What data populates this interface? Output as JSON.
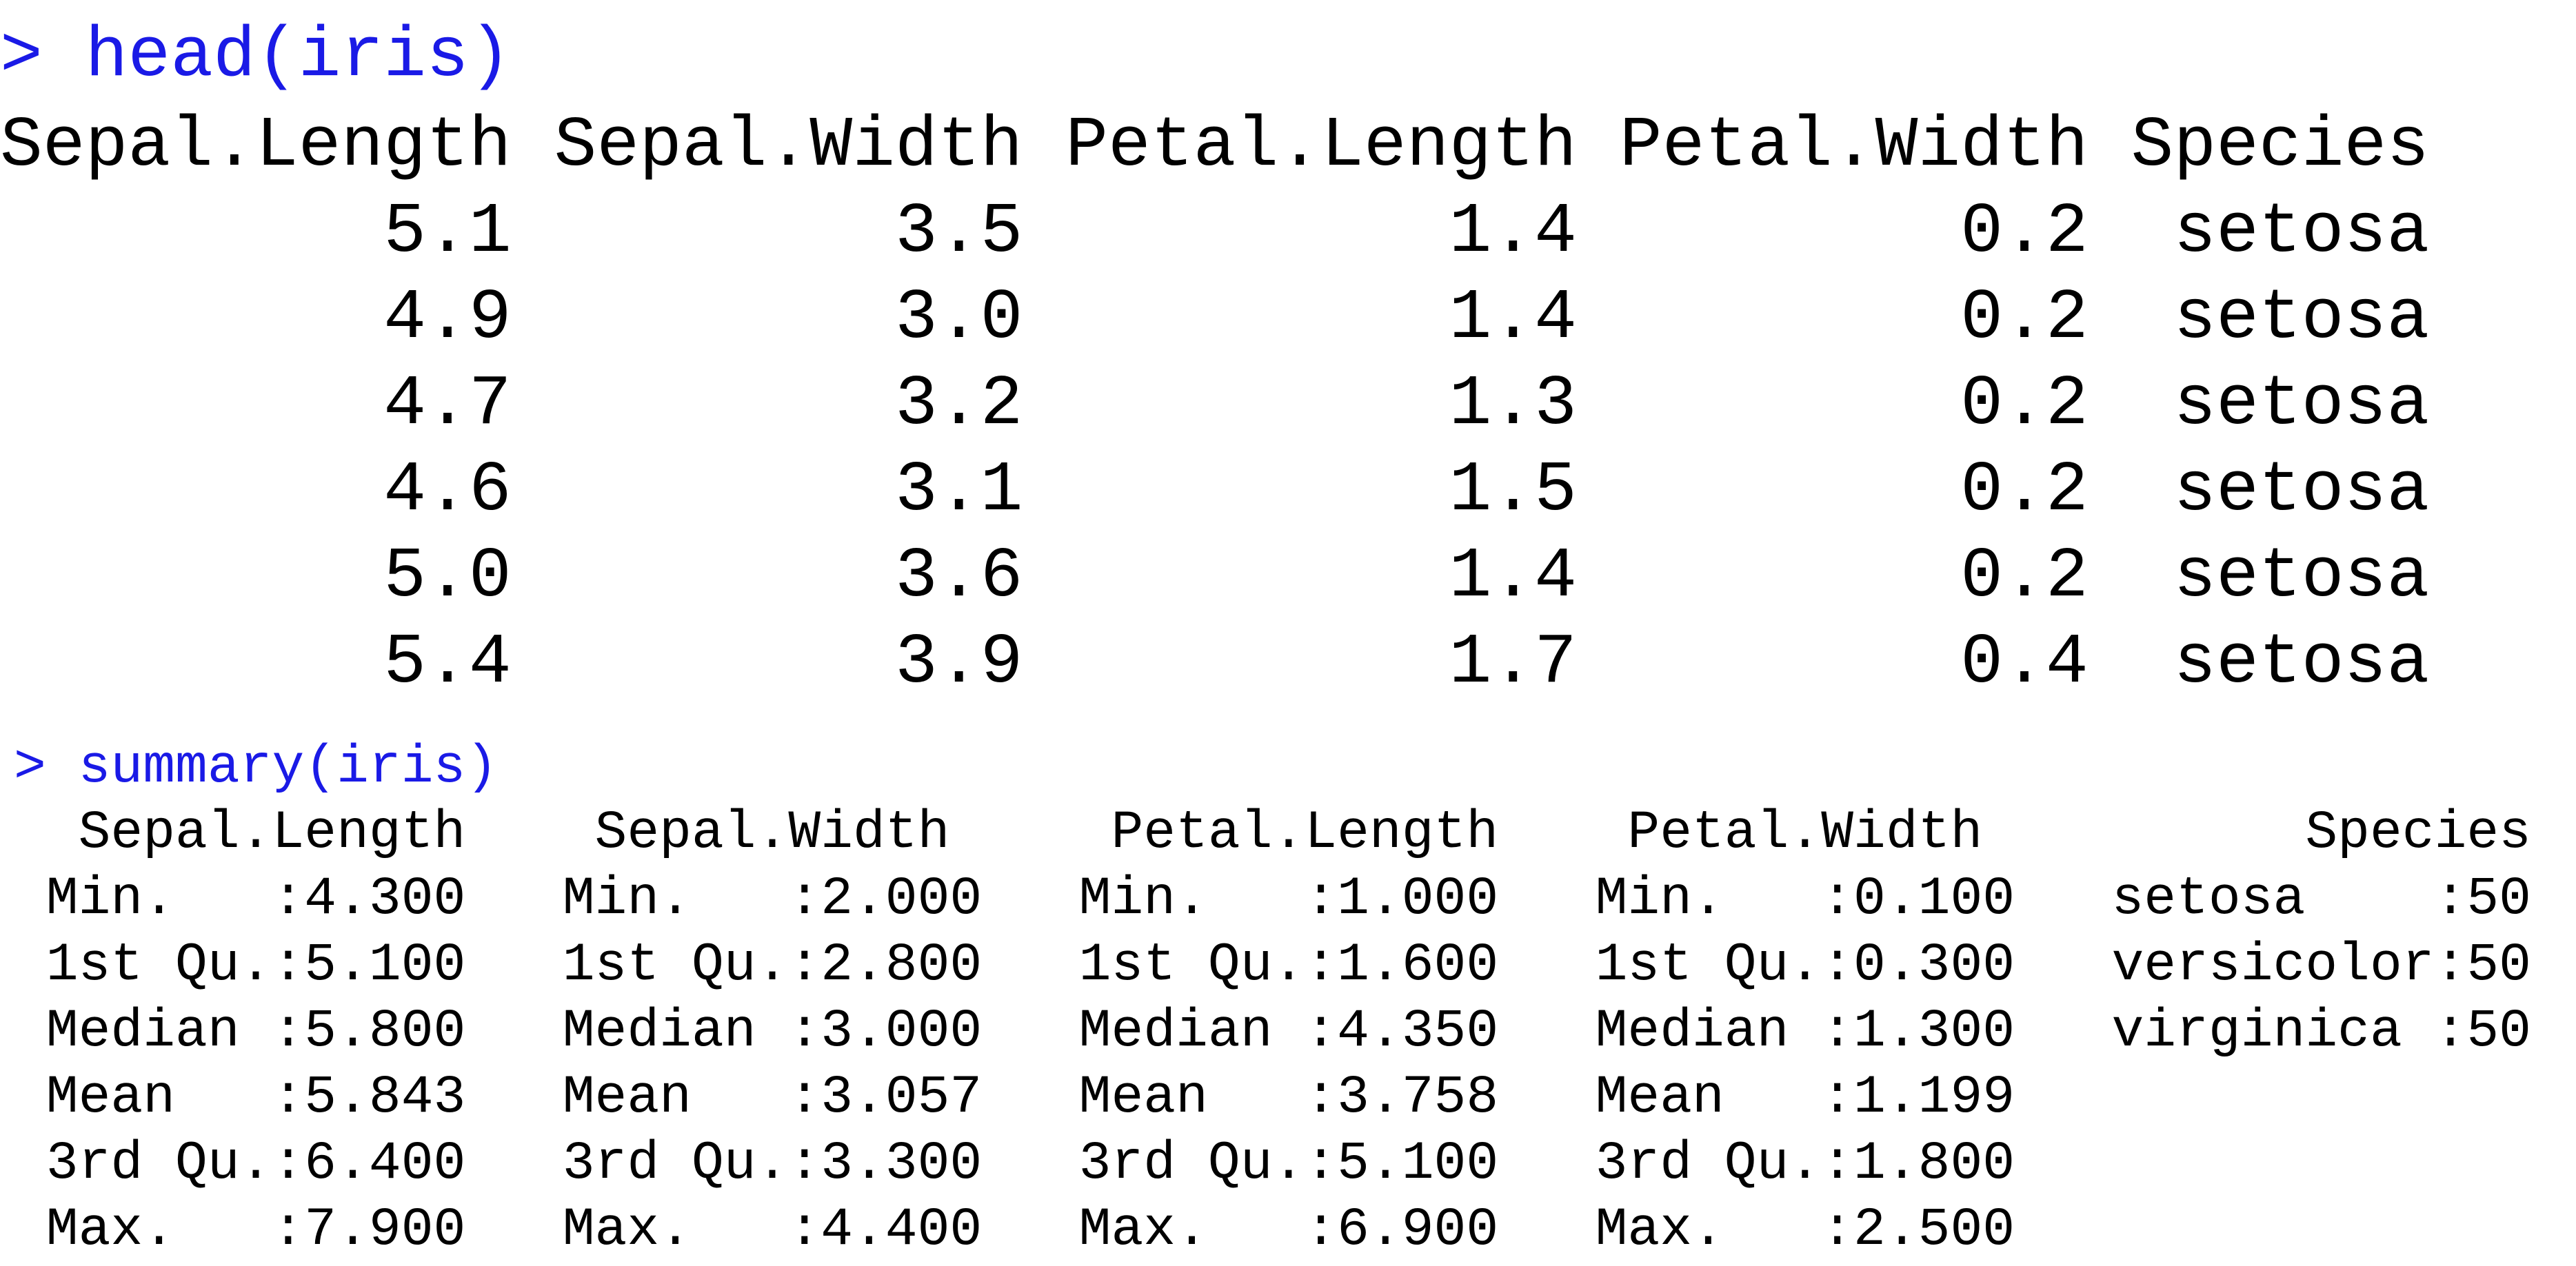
{
  "console": {
    "head_command": "> head(iris)",
    "head_output": [
      "Sepal.Length Sepal.Width Petal.Length Petal.Width Species",
      "         5.1         3.5          1.4         0.2  setosa",
      "         4.9         3.0          1.4         0.2  setosa",
      "         4.7         3.2          1.3         0.2  setosa",
      "         4.6         3.1          1.5         0.2  setosa",
      "         5.0         3.6          1.4         0.2  setosa",
      "         5.4         3.9          1.7         0.4  setosa"
    ],
    "summary_command": "> summary(iris)",
    "summary_output": [
      "  Sepal.Length    Sepal.Width     Petal.Length    Petal.Width          Species  ",
      " Min.   :4.300   Min.   :2.000   Min.   :1.000   Min.   :0.100   setosa    :50  ",
      " 1st Qu.:5.100   1st Qu.:2.800   1st Qu.:1.600   1st Qu.:0.300   versicolor:50  ",
      " Median :5.800   Median :3.000   Median :4.350   Median :1.300   virginica :50  ",
      " Mean   :5.843   Mean   :3.057   Mean   :3.758   Mean   :1.199                  ",
      " 3rd Qu.:6.400   3rd Qu.:3.300   3rd Qu.:5.100   3rd Qu.:1.800                  ",
      " Max.   :7.900   Max.   :4.400   Max.   :6.900   Max.   :2.500                  "
    ],
    "colors": {
      "command": "#1a1ae6",
      "output": "#000000",
      "background": "#ffffff"
    }
  }
}
